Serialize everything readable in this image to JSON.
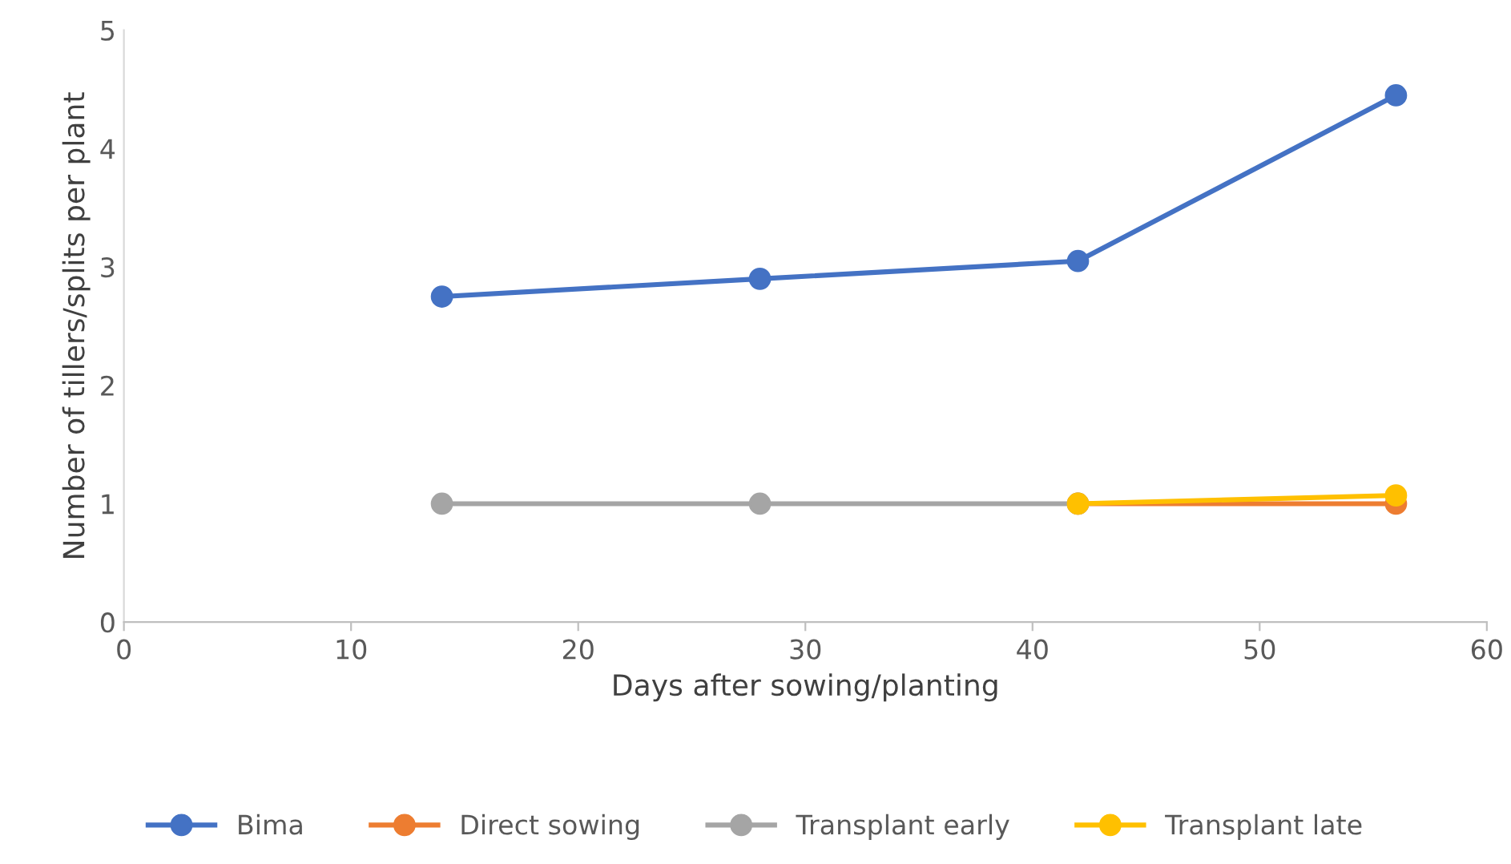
{
  "chart_data": {
    "type": "line",
    "xlabel": "Days after sowing/planting",
    "ylabel": "Number of tillers/splits per plant",
    "xlim": [
      0,
      60
    ],
    "xticks": [
      0,
      10,
      20,
      30,
      40,
      50,
      60
    ],
    "ylim": [
      0,
      5
    ],
    "yticks": [
      0,
      1,
      2,
      3,
      4,
      5
    ],
    "grid": false,
    "legend": "bottom",
    "marker": "circle",
    "line_style": "solid",
    "series": [
      {
        "name": "Bima",
        "color": "#4472c4",
        "x": [
          14,
          28,
          42,
          56
        ],
        "values": [
          2.75,
          2.9,
          3.05,
          4.45
        ]
      },
      {
        "name": "Direct sowing",
        "color": "#ed7d31",
        "x": [
          42,
          56
        ],
        "values": [
          1,
          1
        ]
      },
      {
        "name": "Transplant early",
        "color": "#a5a5a5",
        "x": [
          14,
          28,
          42
        ],
        "values": [
          1,
          1,
          1
        ]
      },
      {
        "name": "Transplant late",
        "color": "#ffc000",
        "x": [
          42,
          56
        ],
        "values": [
          1,
          1.07
        ]
      }
    ]
  }
}
